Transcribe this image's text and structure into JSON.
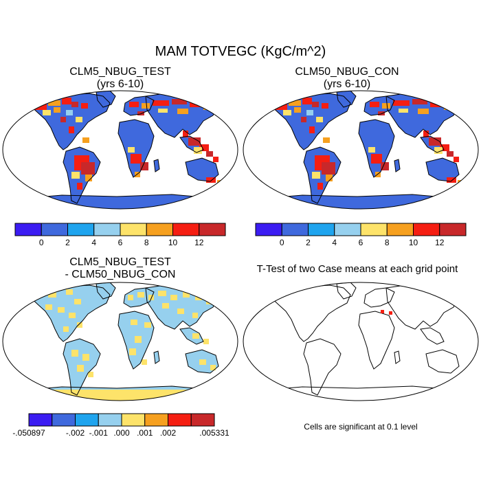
{
  "page": {
    "title": "MAM TOTVEGC (KgC/m^2)"
  },
  "colors": {
    "bins": [
      "#3b1cf2",
      "#3f69dd",
      "#1fa4ee",
      "#96d0ee",
      "#fde36a",
      "#f6a01f",
      "#f51e12",
      "#c8282a"
    ],
    "land_base": "#3f69dd",
    "diff_low": "#96d0ee",
    "diff_high": "#fde36a",
    "significant": "#f51e12"
  },
  "panels": {
    "test": {
      "title_line1": "CLM5_NBUG_TEST",
      "title_line2": "(yrs 6-10)"
    },
    "control": {
      "title_line1": "CLM50_NBUG_CON",
      "title_line2": "(yrs 6-10)"
    },
    "difference": {
      "title_line1": "CLM5_NBUG_TEST",
      "title_line2": "- CLM50_NBUG_CON"
    },
    "ttest": {
      "title": "T-Test of two Case means at each grid point",
      "note": "Cells are significant at 0.1 level"
    }
  },
  "colorbars": {
    "field": {
      "labels": [
        "0",
        "2",
        "4",
        "6",
        "8",
        "10",
        "12"
      ]
    },
    "difference": {
      "labels": [
        "-.050897",
        "-.002",
        "-.001",
        ".000",
        ".001",
        ".002",
        ".005331"
      ]
    }
  }
}
